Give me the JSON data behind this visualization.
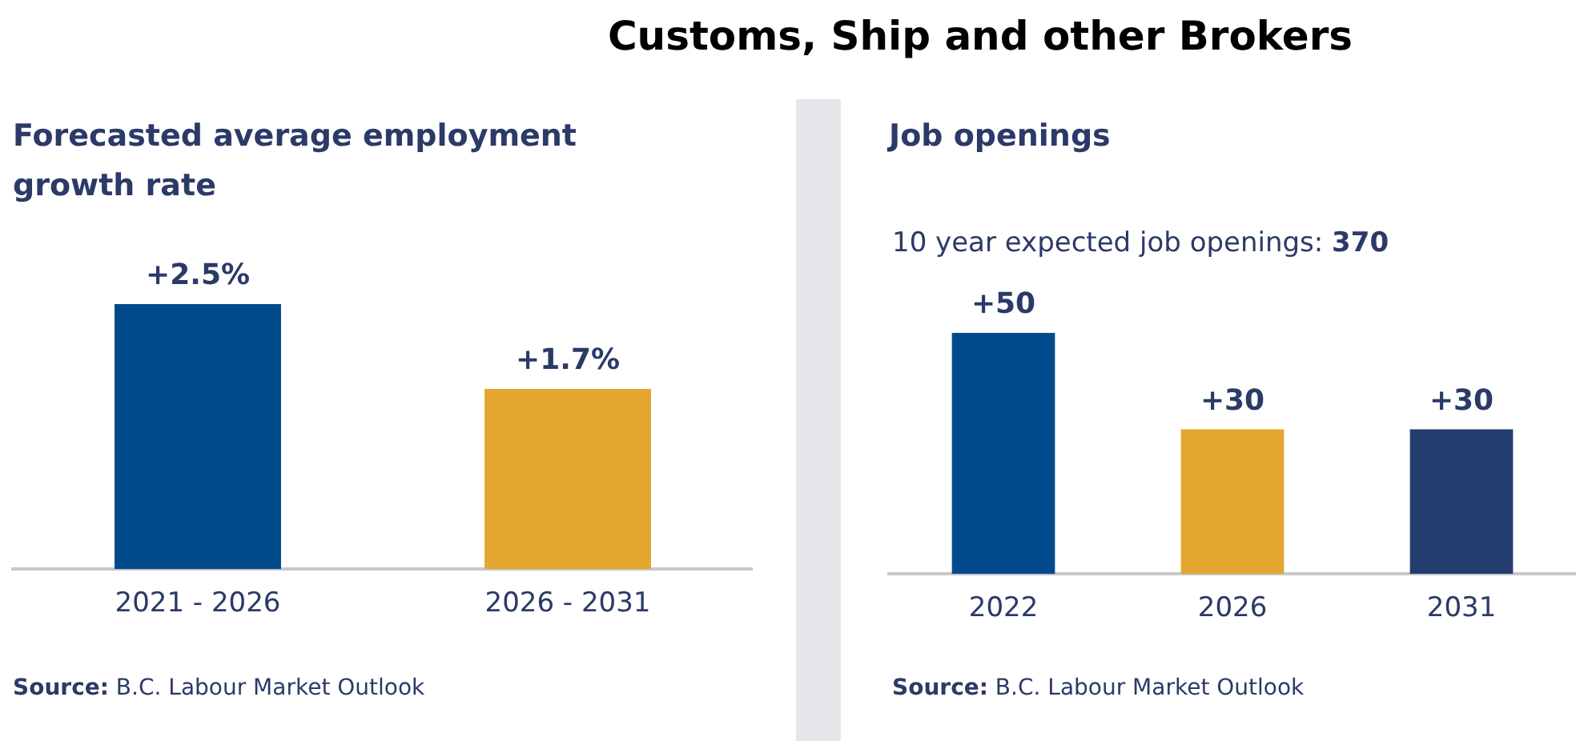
{
  "chart_data": [
    {
      "type": "bar",
      "title": "Forecasted average employment growth rate",
      "categories": [
        "2021 - 2026",
        "2026 - 2031"
      ],
      "values": [
        2.5,
        1.7
      ],
      "colors": [
        "#004a8c",
        "#e3a72f"
      ],
      "value_labels": [
        "+2.5%",
        "+1.7%"
      ],
      "tick_labels": "x",
      "grid": false,
      "legend": false,
      "annotations": [
        "Source: B.C. Labour Market Outlook"
      ]
    },
    {
      "type": "bar",
      "title": "Customs, Ship and other Brokers",
      "subtitle": "Job openings",
      "categories": [
        "2022",
        "2026",
        "2031"
      ],
      "values": [
        50,
        30,
        30
      ],
      "colors": [
        "#004a8c",
        "#e3a72f",
        "#233d6e"
      ],
      "value_labels": [
        "+50",
        "+30",
        "+30"
      ],
      "tick_labels": "x",
      "grid": false,
      "legend": false,
      "annotations": [
        "10 year expected job openings: 370",
        "Source: B.C. Labour Market Outlook"
      ]
    }
  ]
}
